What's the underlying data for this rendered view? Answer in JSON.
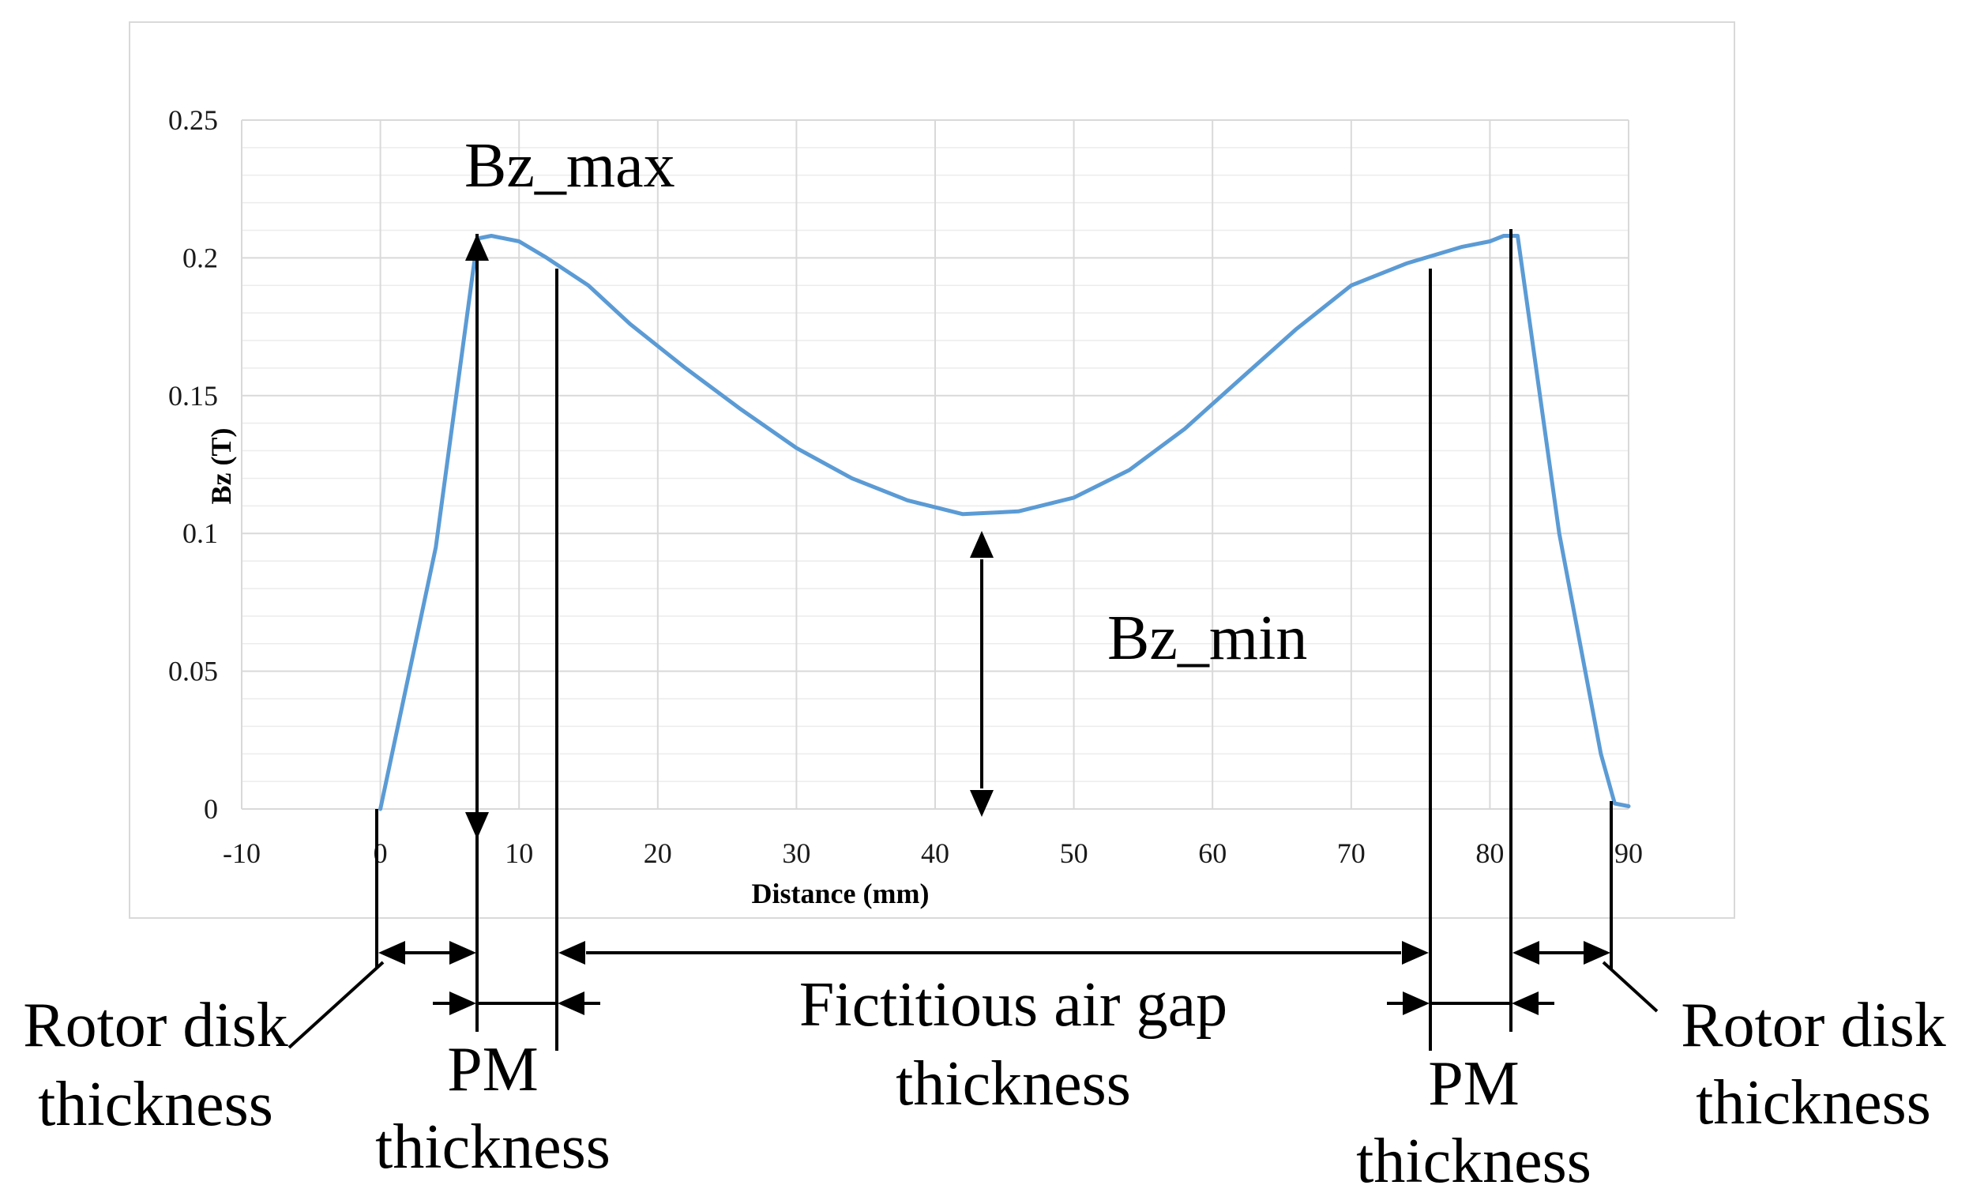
{
  "chart_data": {
    "type": "line",
    "xlabel": "Distance (mm)",
    "ylabel": "Bz (T)",
    "xlim": [
      -10,
      90
    ],
    "ylim": [
      0,
      0.25
    ],
    "x_ticks": [
      "-10",
      "0",
      "10",
      "20",
      "30",
      "40",
      "50",
      "60",
      "70",
      "80",
      "90"
    ],
    "y_ticks": [
      "0",
      "0.05",
      "0.1",
      "0.15",
      "0.2",
      "0.25"
    ],
    "grid": true,
    "legend": "none",
    "series": [
      {
        "color": "#5b9bd5",
        "x": [
          0,
          4,
          7,
          8,
          10,
          12,
          15,
          18,
          22,
          26,
          30,
          34,
          38,
          42,
          46,
          50,
          54,
          58,
          62,
          66,
          70,
          74,
          76,
          78,
          80,
          81,
          82,
          85,
          88,
          89,
          90
        ],
        "y": [
          0,
          0.095,
          0.207,
          0.208,
          0.206,
          0.2,
          0.19,
          0.176,
          0.16,
          0.145,
          0.131,
          0.12,
          0.112,
          0.107,
          0.108,
          0.113,
          0.123,
          0.138,
          0.156,
          0.174,
          0.19,
          0.198,
          0.201,
          0.204,
          0.206,
          0.208,
          0.208,
          0.1,
          0.02,
          0.002,
          0.001
        ]
      }
    ]
  },
  "annotations": {
    "bz_max": "Bz_max",
    "bz_min": "Bz_min",
    "rotor_left": [
      "Rotor disk",
      "thickness"
    ],
    "pm_left": [
      "PM",
      "thickness"
    ],
    "air_gap": [
      "Fictitious air gap",
      "thickness"
    ],
    "pm_right": [
      "PM",
      "thickness"
    ],
    "rotor_right": [
      "Rotor disk",
      "thickness"
    ]
  }
}
